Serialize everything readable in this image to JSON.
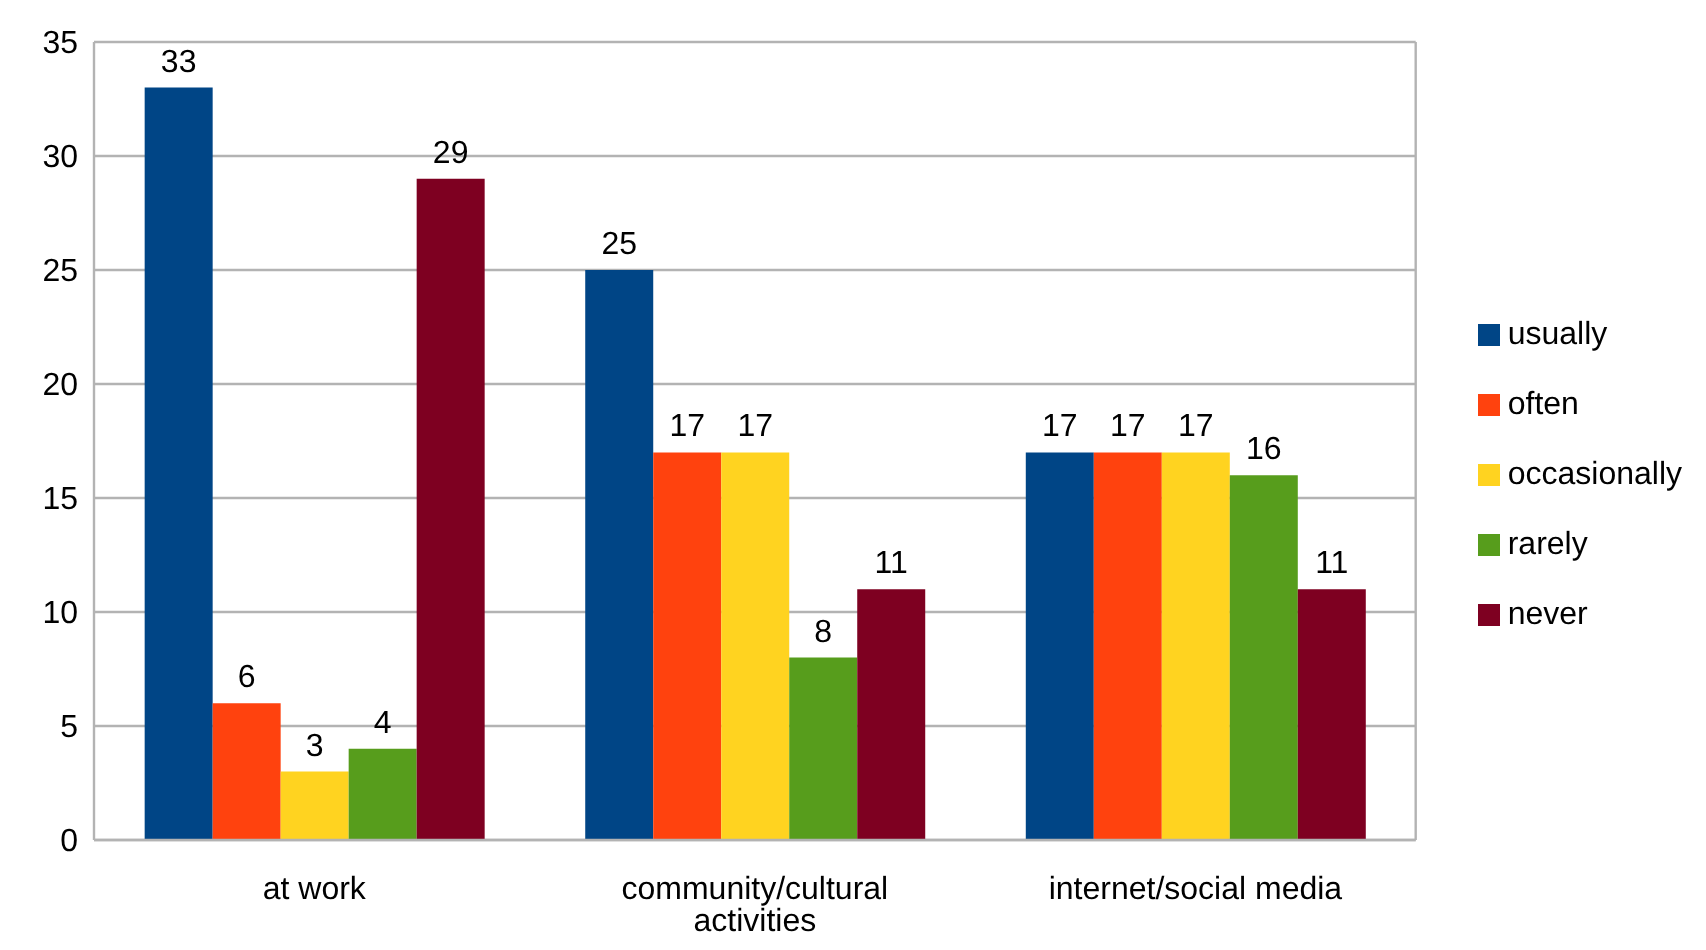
{
  "chart_data": {
    "type": "bar",
    "categories": [
      "at work",
      "community/cultural activities",
      "internet/social media"
    ],
    "series": [
      {
        "name": "usually",
        "color": "#004586",
        "values": [
          33,
          25,
          17
        ]
      },
      {
        "name": "often",
        "color": "#ff420e",
        "values": [
          6,
          17,
          17
        ]
      },
      {
        "name": "occasionally",
        "color": "#ffd320",
        "values": [
          3,
          17,
          17
        ]
      },
      {
        "name": "rarely",
        "color": "#579d1c",
        "values": [
          4,
          8,
          16
        ]
      },
      {
        "name": "never",
        "color": "#7e0021",
        "values": [
          29,
          11,
          11
        ]
      }
    ],
    "ylim": [
      0,
      35
    ],
    "yticks": [
      0,
      5,
      10,
      15,
      20,
      25,
      30,
      35
    ],
    "grid": "y",
    "legend": "right",
    "data_labels": true
  }
}
